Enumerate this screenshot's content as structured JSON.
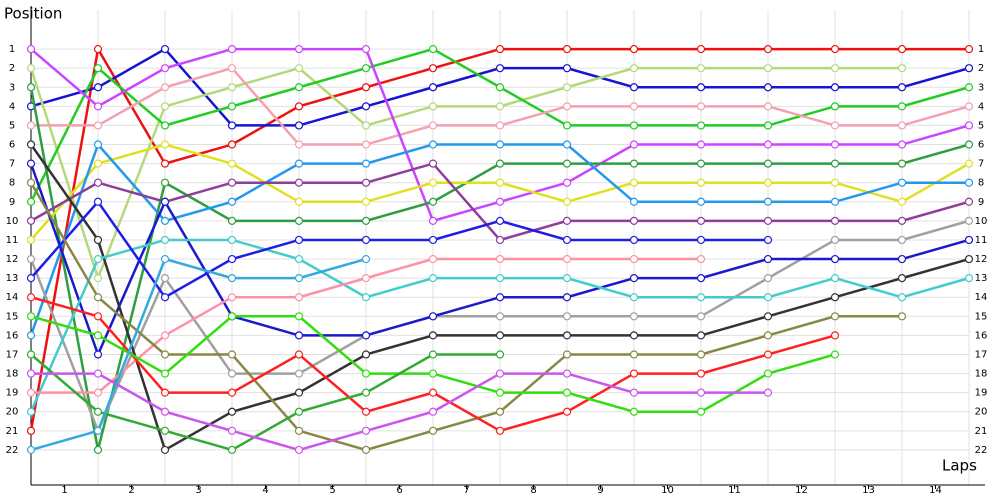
{
  "chart_data": {
    "type": "line",
    "y_label": "Position",
    "x_label": "Laps",
    "x": [
      0,
      1,
      2,
      3,
      4,
      5,
      6,
      7,
      8,
      9,
      10,
      11,
      12,
      13,
      14
    ],
    "xlim": [
      0,
      14
    ],
    "xticks": [
      {
        "value": 0.5,
        "label": "1"
      },
      {
        "value": 1.5,
        "label": "2"
      },
      {
        "value": 2.5,
        "label": "3"
      },
      {
        "value": 3.5,
        "label": "4"
      },
      {
        "value": 4.5,
        "label": "5"
      },
      {
        "value": 5.5,
        "label": "6"
      },
      {
        "value": 6.5,
        "label": "7"
      },
      {
        "value": 7.5,
        "label": "8"
      },
      {
        "value": 8.5,
        "label": "9"
      },
      {
        "value": 9.5,
        "label": "10"
      },
      {
        "value": 10.5,
        "label": "11"
      },
      {
        "value": 11.5,
        "label": "12"
      },
      {
        "value": 12.5,
        "label": "13"
      },
      {
        "value": 13.5,
        "label": "14"
      }
    ],
    "ylim": [
      23,
      0
    ],
    "yticks": [
      1,
      2,
      3,
      4,
      5,
      6,
      7,
      8,
      9,
      10,
      11,
      12,
      13,
      14,
      15,
      16,
      17,
      18,
      19,
      20,
      21,
      22
    ],
    "grid": true,
    "series": [
      {
        "color": "#ee1111",
        "values": [
          21,
          1,
          7,
          6,
          4,
          3,
          2,
          1,
          1,
          1,
          1,
          1,
          1,
          1,
          1
        ]
      },
      {
        "color": "#1414d2",
        "values": [
          4,
          3,
          1,
          5,
          5,
          4,
          3,
          2,
          2,
          3,
          3,
          3,
          3,
          3,
          2
        ]
      },
      {
        "color": "#b5d97a",
        "values": [
          2,
          13,
          4,
          3,
          2,
          5,
          4,
          4,
          3,
          2,
          2,
          2,
          2,
          2,
          null
        ]
      },
      {
        "color": "#22cc22",
        "values": [
          9,
          2,
          5,
          4,
          3,
          2,
          1,
          3,
          5,
          5,
          5,
          5,
          4,
          4,
          3
        ]
      },
      {
        "color": "#f4a0b0",
        "values": [
          5,
          5,
          3,
          2,
          6,
          6,
          5,
          5,
          4,
          4,
          4,
          4,
          5,
          5,
          4
        ]
      },
      {
        "color": "#cc44ff",
        "values": [
          1,
          4,
          2,
          1,
          1,
          1,
          10,
          9,
          8,
          6,
          6,
          6,
          6,
          6,
          5
        ]
      },
      {
        "color": "#2e9e3e",
        "values": [
          3,
          22,
          8,
          10,
          10,
          10,
          9,
          7,
          7,
          7,
          7,
          7,
          7,
          7,
          6
        ]
      },
      {
        "color": "#e0e020",
        "values": [
          11,
          7,
          6,
          7,
          9,
          9,
          8,
          8,
          9,
          8,
          8,
          8,
          8,
          9,
          7
        ]
      },
      {
        "color": "#2299ee",
        "values": [
          16,
          6,
          10,
          9,
          7,
          7,
          6,
          6,
          6,
          9,
          9,
          9,
          9,
          8,
          8
        ]
      },
      {
        "color": "#8e3d98",
        "values": [
          10,
          8,
          9,
          8,
          8,
          8,
          7,
          11,
          10,
          10,
          10,
          10,
          10,
          10,
          9
        ]
      },
      {
        "color": "#a0a0a0",
        "values": [
          12,
          21,
          13,
          18,
          18,
          16,
          15,
          15,
          15,
          15,
          15,
          13,
          11,
          11,
          10
        ]
      },
      {
        "color": "#1a1acc",
        "values": [
          7,
          17,
          9,
          15,
          16,
          16,
          15,
          14,
          14,
          13,
          13,
          12,
          12,
          12,
          11
        ]
      },
      {
        "color": "#333333",
        "values": [
          6,
          11,
          22,
          20,
          19,
          17,
          16,
          16,
          16,
          16,
          16,
          15,
          14,
          13,
          12
        ]
      },
      {
        "color": "#44cccc",
        "values": [
          20,
          12,
          11,
          11,
          12,
          14,
          13,
          13,
          13,
          14,
          14,
          14,
          13,
          14,
          13
        ]
      },
      {
        "color": "#1e1ee6",
        "values": [
          13,
          9,
          14,
          12,
          11,
          11,
          11,
          10,
          11,
          11,
          11,
          11,
          null,
          null,
          null
        ]
      },
      {
        "color": "#ff90a8",
        "values": [
          19,
          19,
          16,
          14,
          14,
          13,
          12,
          12,
          12,
          12,
          12,
          null,
          null,
          null,
          null
        ]
      },
      {
        "color": "#888844",
        "values": [
          8,
          14,
          17,
          17,
          21,
          22,
          21,
          20,
          17,
          17,
          17,
          16,
          15,
          15,
          null
        ]
      },
      {
        "color": "#ff2020",
        "values": [
          14,
          15,
          19,
          19,
          17,
          20,
          19,
          21,
          20,
          18,
          18,
          17,
          16,
          null,
          null
        ]
      },
      {
        "color": "#33dd11",
        "values": [
          15,
          16,
          18,
          15,
          15,
          18,
          18,
          19,
          19,
          20,
          20,
          18,
          17,
          null,
          null
        ]
      },
      {
        "color": "#33aa33",
        "values": [
          17,
          20,
          21,
          22,
          20,
          19,
          17,
          17,
          null,
          null,
          null,
          null,
          null,
          null,
          null
        ]
      },
      {
        "color": "#cc55ee",
        "values": [
          18,
          18,
          20,
          21,
          22,
          21,
          20,
          18,
          18,
          19,
          19,
          19,
          null,
          null,
          null
        ]
      },
      {
        "color": "#33aadd",
        "values": [
          22,
          21,
          12,
          13,
          13,
          12,
          null,
          null,
          null,
          null,
          null,
          null,
          null,
          null,
          null
        ]
      }
    ]
  }
}
